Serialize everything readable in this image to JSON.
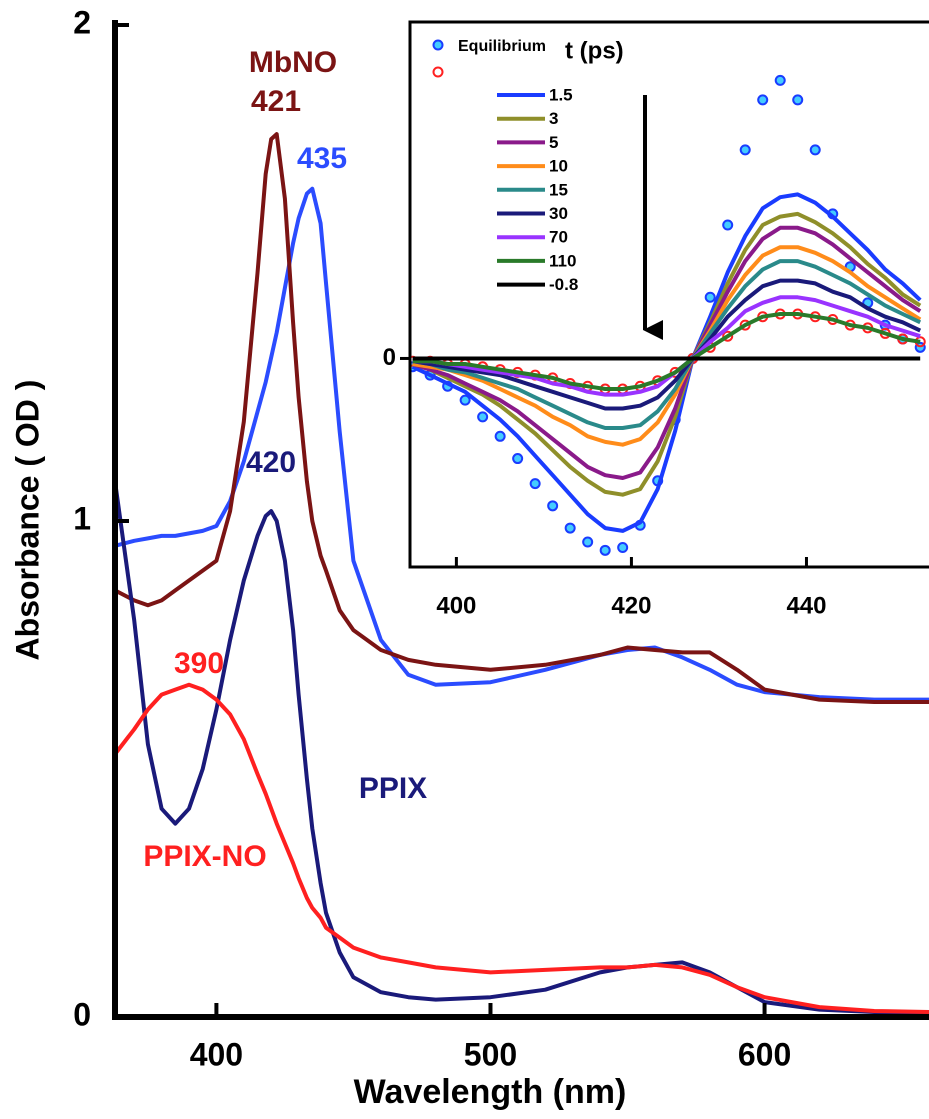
{
  "chart_data": [
    {
      "type": "line",
      "xlabel": "Wavelength (nm)",
      "ylabel": "Absorbance ( OD )",
      "xlim": [
        363,
        660
      ],
      "ylim": [
        0,
        2
      ],
      "xticks": [
        400,
        500,
        600
      ],
      "yticks": [
        0,
        1,
        2
      ],
      "x": [
        363,
        370,
        375,
        380,
        385,
        390,
        395,
        400,
        405,
        410,
        415,
        418,
        420,
        422,
        425,
        428,
        430,
        433,
        435,
        438,
        440,
        445,
        450,
        460,
        470,
        480,
        500,
        520,
        540,
        550,
        560,
        570,
        580,
        590,
        600,
        620,
        640,
        660
      ],
      "series": [
        {
          "color": "#2b4cff",
          "values": [
            0.95,
            0.96,
            0.965,
            0.97,
            0.97,
            0.975,
            0.98,
            0.99,
            1.04,
            1.12,
            1.22,
            1.28,
            1.33,
            1.38,
            1.47,
            1.56,
            1.61,
            1.66,
            1.67,
            1.6,
            1.48,
            1.18,
            0.92,
            0.76,
            0.69,
            0.67,
            0.675,
            0.7,
            0.73,
            0.74,
            0.745,
            0.725,
            0.7,
            0.67,
            0.655,
            0.645,
            0.64,
            0.64
          ]
        },
        {
          "color": "#7b1414",
          "values": [
            0.86,
            0.84,
            0.83,
            0.84,
            0.86,
            0.88,
            0.9,
            0.92,
            1.02,
            1.2,
            1.5,
            1.7,
            1.77,
            1.78,
            1.65,
            1.4,
            1.25,
            1.08,
            1.0,
            0.93,
            0.9,
            0.82,
            0.78,
            0.74,
            0.72,
            0.71,
            0.7,
            0.71,
            0.73,
            0.745,
            0.74,
            0.735,
            0.735,
            0.7,
            0.66,
            0.64,
            0.635,
            0.635
          ]
        },
        {
          "color": "#1a1a7a",
          "values": [
            1.08,
            0.8,
            0.55,
            0.42,
            0.39,
            0.42,
            0.5,
            0.62,
            0.76,
            0.88,
            0.97,
            1.01,
            1.02,
            1.0,
            0.92,
            0.78,
            0.65,
            0.48,
            0.38,
            0.27,
            0.21,
            0.13,
            0.08,
            0.05,
            0.04,
            0.035,
            0.04,
            0.055,
            0.09,
            0.1,
            0.105,
            0.11,
            0.09,
            0.06,
            0.03,
            0.015,
            0.01,
            0.008
          ]
        },
        {
          "color": "#ff2020",
          "values": [
            0.53,
            0.58,
            0.62,
            0.65,
            0.66,
            0.67,
            0.66,
            0.64,
            0.61,
            0.56,
            0.49,
            0.45,
            0.42,
            0.39,
            0.35,
            0.31,
            0.28,
            0.24,
            0.22,
            0.2,
            0.18,
            0.16,
            0.14,
            0.12,
            0.11,
            0.1,
            0.09,
            0.095,
            0.1,
            0.1,
            0.105,
            0.1,
            0.085,
            0.06,
            0.04,
            0.02,
            0.012,
            0.01
          ]
        }
      ],
      "annotations": [
        {
          "text": "MbNO",
          "color": "#7b1414"
        },
        {
          "text": "421",
          "color": "#7b1414"
        },
        {
          "text": "435",
          "color": "#2b4cff"
        },
        {
          "text": "420",
          "color": "#1a1a7a"
        },
        {
          "text": "390",
          "color": "#ff2020"
        },
        {
          "text": "PPIX",
          "color": "#1a1a7a"
        },
        {
          "text": "PPIX-NO",
          "color": "#ff2020"
        }
      ]
    },
    {
      "type": "line",
      "xlim": [
        394.7,
        454
      ],
      "ylim": [
        -0.75,
        1.21
      ],
      "xticks": [
        400,
        420,
        440
      ],
      "yticks": [
        0
      ],
      "legend_title": "t (ps)",
      "x": [
        395,
        397,
        399,
        401,
        403,
        405,
        407,
        409,
        411,
        413,
        415,
        417,
        419,
        421,
        423,
        425,
        427,
        429,
        431,
        433,
        435,
        437,
        439,
        441,
        443,
        445,
        447,
        449,
        451,
        453
      ],
      "series": [
        {
          "name": "Equilibrium",
          "style": "dots",
          "color": "#1a3cff",
          "fill": "#44ccff",
          "values": [
            -0.03,
            -0.06,
            -0.1,
            -0.15,
            -0.21,
            -0.28,
            -0.36,
            -0.45,
            -0.53,
            -0.61,
            -0.66,
            -0.69,
            -0.68,
            -0.6,
            -0.44,
            -0.22,
            0,
            0.22,
            0.48,
            0.75,
            0.93,
            1.0,
            0.93,
            0.75,
            0.52,
            0.33,
            0.2,
            0.12,
            0.07,
            0.04
          ]
        },
        {
          "style": "dots",
          "color": "#ff2020",
          "fill": "none",
          "values": [
            -0.01,
            -0.01,
            -0.02,
            -0.02,
            -0.03,
            -0.04,
            -0.05,
            -0.06,
            -0.07,
            -0.09,
            -0.1,
            -0.11,
            -0.11,
            -0.1,
            -0.08,
            -0.05,
            0,
            0.04,
            0.08,
            0.12,
            0.15,
            0.16,
            0.16,
            0.15,
            0.14,
            0.12,
            0.11,
            0.09,
            0.07,
            0.06
          ]
        },
        {
          "name": "1.5",
          "color": "#1a3cff",
          "values": [
            -0.03,
            -0.06,
            -0.09,
            -0.12,
            -0.17,
            -0.22,
            -0.28,
            -0.35,
            -0.42,
            -0.49,
            -0.56,
            -0.61,
            -0.62,
            -0.59,
            -0.47,
            -0.26,
            0,
            0.15,
            0.31,
            0.44,
            0.54,
            0.58,
            0.59,
            0.56,
            0.51,
            0.45,
            0.39,
            0.32,
            0.27,
            0.21
          ]
        },
        {
          "name": "3",
          "color": "#8f8f2a",
          "values": [
            -0.02,
            -0.04,
            -0.07,
            -0.1,
            -0.13,
            -0.17,
            -0.22,
            -0.27,
            -0.33,
            -0.39,
            -0.44,
            -0.48,
            -0.49,
            -0.47,
            -0.37,
            -0.21,
            0,
            0.13,
            0.27,
            0.39,
            0.48,
            0.51,
            0.52,
            0.49,
            0.45,
            0.4,
            0.34,
            0.29,
            0.23,
            0.19
          ]
        },
        {
          "name": "5",
          "color": "#8a1a8a",
          "values": [
            -0.02,
            -0.04,
            -0.06,
            -0.09,
            -0.12,
            -0.15,
            -0.19,
            -0.24,
            -0.29,
            -0.34,
            -0.39,
            -0.42,
            -0.43,
            -0.41,
            -0.32,
            -0.18,
            0,
            0.12,
            0.24,
            0.35,
            0.43,
            0.47,
            0.47,
            0.45,
            0.41,
            0.36,
            0.31,
            0.26,
            0.21,
            0.17
          ]
        },
        {
          "name": "10",
          "color": "#ff8c1a",
          "values": [
            -0.02,
            -0.03,
            -0.04,
            -0.06,
            -0.08,
            -0.11,
            -0.14,
            -0.17,
            -0.21,
            -0.24,
            -0.28,
            -0.3,
            -0.31,
            -0.29,
            -0.23,
            -0.13,
            0,
            0.1,
            0.21,
            0.3,
            0.37,
            0.4,
            0.4,
            0.38,
            0.35,
            0.31,
            0.26,
            0.22,
            0.18,
            0.14
          ]
        },
        {
          "name": "15",
          "color": "#2a8a8a",
          "values": [
            -0.01,
            -0.02,
            -0.04,
            -0.05,
            -0.07,
            -0.09,
            -0.11,
            -0.14,
            -0.17,
            -0.2,
            -0.23,
            -0.25,
            -0.25,
            -0.24,
            -0.19,
            -0.11,
            0,
            0.09,
            0.18,
            0.26,
            0.32,
            0.35,
            0.35,
            0.33,
            0.3,
            0.27,
            0.23,
            0.19,
            0.16,
            0.13
          ]
        },
        {
          "name": "30",
          "color": "#1a1a7a",
          "values": [
            -0.01,
            -0.02,
            -0.03,
            -0.04,
            -0.05,
            -0.06,
            -0.08,
            -0.1,
            -0.12,
            -0.14,
            -0.16,
            -0.18,
            -0.18,
            -0.17,
            -0.14,
            -0.08,
            0,
            0.07,
            0.15,
            0.21,
            0.26,
            0.28,
            0.28,
            0.27,
            0.24,
            0.22,
            0.18,
            0.15,
            0.13,
            0.1
          ]
        },
        {
          "name": "70",
          "color": "#9933ff",
          "values": [
            -0.01,
            -0.01,
            -0.02,
            -0.03,
            -0.04,
            -0.05,
            -0.06,
            -0.07,
            -0.09,
            -0.1,
            -0.12,
            -0.13,
            -0.13,
            -0.12,
            -0.1,
            -0.05,
            0,
            0.06,
            0.11,
            0.17,
            0.2,
            0.22,
            0.22,
            0.21,
            0.19,
            0.17,
            0.15,
            0.12,
            0.1,
            0.08
          ]
        },
        {
          "name": "110",
          "color": "#2a7a2a",
          "values": [
            -0.01,
            -0.01,
            -0.02,
            -0.02,
            -0.03,
            -0.04,
            -0.05,
            -0.06,
            -0.07,
            -0.09,
            -0.1,
            -0.11,
            -0.11,
            -0.1,
            -0.08,
            -0.05,
            0,
            0.04,
            0.08,
            0.12,
            0.15,
            0.16,
            0.16,
            0.15,
            0.14,
            0.12,
            0.11,
            0.09,
            0.07,
            0.06
          ]
        },
        {
          "name": "-0.8",
          "color": "#000000",
          "values": [
            0,
            0,
            0,
            0,
            0,
            0,
            0,
            0,
            0,
            0,
            0,
            0,
            0,
            0,
            0,
            0,
            0,
            0,
            0,
            0,
            0,
            0,
            0,
            0,
            0,
            0,
            0,
            0,
            0,
            0
          ]
        }
      ]
    }
  ]
}
